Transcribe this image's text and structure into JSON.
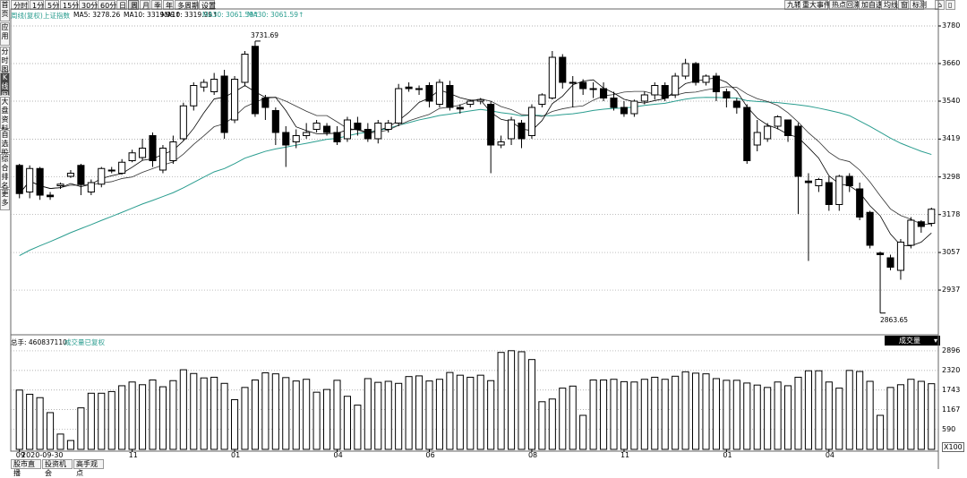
{
  "window": {
    "tabs": [
      "分时",
      "1分",
      "5分",
      "15分",
      "30分",
      "60分",
      "日",
      "周",
      "月",
      "季",
      "年",
      "多周期",
      "设置"
    ],
    "active_tab": "周",
    "right_buttons": [
      "九转",
      "重大事件",
      "热点回溯",
      "加自选",
      "均线",
      "窗",
      "标测"
    ],
    "left_nav": [
      "首页",
      "应用",
      "分时图",
      "K线图",
      "大盘资料",
      "自选股",
      "综合排名",
      "更多"
    ],
    "active_left": "K线图",
    "bottom_tabs": [
      "股市直播",
      "投资机会",
      "高手观点"
    ]
  },
  "info": {
    "label": "周线(复权)",
    "index": "上证指数",
    "ma5": "MA5: 3278.26",
    "ma10": "MA10: 3319.99↑",
    "ma10b": "MA10: 3319.99↑",
    "ma30": "MA30: 3061.59↑",
    "ma30b": "MA30: 3061.59↑"
  },
  "vol_info": {
    "label": "总手: 460837110",
    "sub": "成交量已复权",
    "selector": "成交量"
  },
  "colors": {
    "ma5": "#000000",
    "ma10": "#333333",
    "ma30": "#2a9d8f",
    "up": "#ffffff",
    "down": "#000000",
    "grid": "#999999"
  },
  "annotations": {
    "high": "3731.69",
    "low": "2863.65"
  },
  "date_tag": "2020-09-30",
  "chart_data": {
    "type": "candlestick",
    "period": "weekly",
    "y_ticks": [
      3780,
      3660,
      3540,
      3419,
      3298,
      3178,
      3057,
      2937
    ],
    "y_range": [
      2800,
      3800
    ],
    "vol_ticks": [
      "2896",
      "2320",
      "1743",
      "1167",
      "590",
      "X100"
    ],
    "vol_range": [
      0,
      3000
    ],
    "x_labels": [
      "09",
      "11",
      "01",
      "04",
      "06",
      "08",
      "11",
      "01",
      "04"
    ],
    "x_label_positions": [
      0,
      11,
      21,
      31,
      40,
      50,
      59,
      69,
      79
    ],
    "candles": [
      {
        "o": 3335,
        "c": 3245,
        "h": 3340,
        "l": 3230
      },
      {
        "o": 3250,
        "c": 3325,
        "h": 3335,
        "l": 3230
      },
      {
        "o": 3325,
        "c": 3240,
        "h": 3330,
        "l": 3225
      },
      {
        "o": 3240,
        "c": 3235,
        "h": 3250,
        "l": 3225
      },
      {
        "o": 3270,
        "c": 3275,
        "h": 3280,
        "l": 3260
      },
      {
        "o": 3300,
        "c": 3310,
        "h": 3320,
        "l": 3295
      },
      {
        "o": 3335,
        "c": 3275,
        "h": 3340,
        "l": 3240
      },
      {
        "o": 3250,
        "c": 3280,
        "h": 3290,
        "l": 3240
      },
      {
        "o": 3275,
        "c": 3325,
        "h": 3330,
        "l": 3265
      },
      {
        "o": 3320,
        "c": 3320,
        "h": 3330,
        "l": 3310
      },
      {
        "o": 3310,
        "c": 3345,
        "h": 3355,
        "l": 3305
      },
      {
        "o": 3350,
        "c": 3375,
        "h": 3385,
        "l": 3345
      },
      {
        "o": 3360,
        "c": 3390,
        "h": 3420,
        "l": 3350
      },
      {
        "o": 3430,
        "c": 3350,
        "h": 3440,
        "l": 3330
      },
      {
        "o": 3320,
        "c": 3390,
        "h": 3400,
        "l": 3310
      },
      {
        "o": 3350,
        "c": 3410,
        "h": 3430,
        "l": 3340
      },
      {
        "o": 3420,
        "c": 3525,
        "h": 3535,
        "l": 3415
      },
      {
        "o": 3525,
        "c": 3590,
        "h": 3600,
        "l": 3510
      },
      {
        "o": 3585,
        "c": 3600,
        "h": 3610,
        "l": 3570
      },
      {
        "o": 3570,
        "c": 3610,
        "h": 3630,
        "l": 3560
      },
      {
        "o": 3620,
        "c": 3440,
        "h": 3640,
        "l": 3420
      },
      {
        "o": 3480,
        "c": 3610,
        "h": 3620,
        "l": 3470
      },
      {
        "o": 3600,
        "c": 3690,
        "h": 3700,
        "l": 3590
      },
      {
        "o": 3715,
        "c": 3500,
        "h": 3731.69,
        "l": 3490
      },
      {
        "o": 3550,
        "c": 3520,
        "h": 3560,
        "l": 3480
      },
      {
        "o": 3510,
        "c": 3440,
        "h": 3520,
        "l": 3400
      },
      {
        "o": 3440,
        "c": 3400,
        "h": 3460,
        "l": 3330
      },
      {
        "o": 3410,
        "c": 3430,
        "h": 3450,
        "l": 3390
      },
      {
        "o": 3430,
        "c": 3440,
        "h": 3470,
        "l": 3420
      },
      {
        "o": 3450,
        "c": 3470,
        "h": 3480,
        "l": 3440
      },
      {
        "o": 3460,
        "c": 3440,
        "h": 3470,
        "l": 3430
      },
      {
        "o": 3440,
        "c": 3410,
        "h": 3460,
        "l": 3400
      },
      {
        "o": 3420,
        "c": 3480,
        "h": 3490,
        "l": 3410
      },
      {
        "o": 3470,
        "c": 3450,
        "h": 3490,
        "l": 3430
      },
      {
        "o": 3450,
        "c": 3420,
        "h": 3470,
        "l": 3410
      },
      {
        "o": 3420,
        "c": 3470,
        "h": 3480,
        "l": 3405
      },
      {
        "o": 3450,
        "c": 3470,
        "h": 3480,
        "l": 3440
      },
      {
        "o": 3470,
        "c": 3580,
        "h": 3595,
        "l": 3460
      },
      {
        "o": 3585,
        "c": 3580,
        "h": 3600,
        "l": 3570
      },
      {
        "o": 3580,
        "c": 3580,
        "h": 3590,
        "l": 3560
      },
      {
        "o": 3590,
        "c": 3540,
        "h": 3600,
        "l": 3520
      },
      {
        "o": 3530,
        "c": 3600,
        "h": 3610,
        "l": 3520
      },
      {
        "o": 3590,
        "c": 3520,
        "h": 3605,
        "l": 3510
      },
      {
        "o": 3520,
        "c": 3515,
        "h": 3530,
        "l": 3500
      },
      {
        "o": 3530,
        "c": 3540,
        "h": 3545,
        "l": 3520
      },
      {
        "o": 3540,
        "c": 3545,
        "h": 3550,
        "l": 3530
      },
      {
        "o": 3530,
        "c": 3400,
        "h": 3540,
        "l": 3310
      },
      {
        "o": 3400,
        "c": 3410,
        "h": 3430,
        "l": 3390
      },
      {
        "o": 3420,
        "c": 3480,
        "h": 3490,
        "l": 3400
      },
      {
        "o": 3470,
        "c": 3420,
        "h": 3480,
        "l": 3390
      },
      {
        "o": 3430,
        "c": 3520,
        "h": 3530,
        "l": 3420
      },
      {
        "o": 3530,
        "c": 3560,
        "h": 3565,
        "l": 3520
      },
      {
        "o": 3550,
        "c": 3680,
        "h": 3700,
        "l": 3545
      },
      {
        "o": 3680,
        "c": 3600,
        "h": 3690,
        "l": 3580
      },
      {
        "o": 3600,
        "c": 3600,
        "h": 3620,
        "l": 3520
      },
      {
        "o": 3600,
        "c": 3580,
        "h": 3610,
        "l": 3560
      },
      {
        "o": 3580,
        "c": 3580,
        "h": 3600,
        "l": 3550
      },
      {
        "o": 3580,
        "c": 3550,
        "h": 3600,
        "l": 3540
      },
      {
        "o": 3550,
        "c": 3520,
        "h": 3570,
        "l": 3510
      },
      {
        "o": 3520,
        "c": 3500,
        "h": 3540,
        "l": 3490
      },
      {
        "o": 3500,
        "c": 3540,
        "h": 3545,
        "l": 3490
      },
      {
        "o": 3540,
        "c": 3560,
        "h": 3570,
        "l": 3530
      },
      {
        "o": 3560,
        "c": 3590,
        "h": 3600,
        "l": 3545
      },
      {
        "o": 3590,
        "c": 3550,
        "h": 3600,
        "l": 3540
      },
      {
        "o": 3560,
        "c": 3620,
        "h": 3630,
        "l": 3550
      },
      {
        "o": 3620,
        "c": 3660,
        "h": 3675,
        "l": 3610
      },
      {
        "o": 3660,
        "c": 3600,
        "h": 3665,
        "l": 3590
      },
      {
        "o": 3600,
        "c": 3620,
        "h": 3625,
        "l": 3590
      },
      {
        "o": 3620,
        "c": 3570,
        "h": 3630,
        "l": 3540
      },
      {
        "o": 3570,
        "c": 3550,
        "h": 3580,
        "l": 3520
      },
      {
        "o": 3540,
        "c": 3520,
        "h": 3550,
        "l": 3500
      },
      {
        "o": 3520,
        "c": 3350,
        "h": 3530,
        "l": 3340
      },
      {
        "o": 3400,
        "c": 3440,
        "h": 3480,
        "l": 3380
      },
      {
        "o": 3420,
        "c": 3460,
        "h": 3470,
        "l": 3410
      },
      {
        "o": 3460,
        "c": 3490,
        "h": 3495,
        "l": 3450
      },
      {
        "o": 3480,
        "c": 3430,
        "h": 3480,
        "l": 3410
      },
      {
        "o": 3460,
        "c": 3300,
        "h": 3470,
        "l": 3180
      },
      {
        "o": 3285,
        "c": 3280,
        "h": 3310,
        "l": 3030
      },
      {
        "o": 3270,
        "c": 3290,
        "h": 3295,
        "l": 3250
      },
      {
        "o": 3280,
        "c": 3210,
        "h": 3300,
        "l": 3190
      },
      {
        "o": 3210,
        "c": 3300,
        "h": 3305,
        "l": 3190
      },
      {
        "o": 3300,
        "c": 3270,
        "h": 3310,
        "l": 3250
      },
      {
        "o": 3260,
        "c": 3170,
        "h": 3280,
        "l": 3160
      },
      {
        "o": 3185,
        "c": 3080,
        "h": 3190,
        "l": 3070
      },
      {
        "o": 3055,
        "c": 3050,
        "h": 3060,
        "l": 2863.65
      },
      {
        "o": 3040,
        "c": 3010,
        "h": 3050,
        "l": 3000
      },
      {
        "o": 3000,
        "c": 3090,
        "h": 3100,
        "l": 2970
      },
      {
        "o": 3080,
        "c": 3160,
        "h": 3170,
        "l": 3070
      },
      {
        "o": 3155,
        "c": 3140,
        "h": 3160,
        "l": 3120
      },
      {
        "o": 3150,
        "c": 3195,
        "h": 3200,
        "l": 3140
      }
    ],
    "volume": [
      1743,
      1620,
      1520,
      1080,
      450,
      260,
      1220,
      1650,
      1650,
      1700,
      1870,
      1980,
      1900,
      2040,
      1840,
      2020,
      2340,
      2230,
      2100,
      2120,
      1940,
      1460,
      1820,
      2040,
      2250,
      2220,
      2110,
      2010,
      2060,
      1680,
      1760,
      2030,
      1560,
      1300,
      2080,
      1970,
      2000,
      1940,
      2140,
      2160,
      2010,
      2060,
      2260,
      2180,
      2120,
      2180,
      2020,
      2850,
      2900,
      2870,
      2640,
      1400,
      1480,
      1800,
      1860,
      1000,
      2040,
      2040,
      2060,
      1990,
      1980,
      2060,
      2120,
      2060,
      2150,
      2280,
      2240,
      2220,
      2080,
      2030,
      2030,
      1950,
      1890,
      1820,
      1980,
      1870,
      2120,
      2310,
      2310,
      1980,
      1800,
      2320,
      2290,
      2000,
      1000,
      1820,
      1900,
      2060,
      2000,
      1930
    ]
  }
}
